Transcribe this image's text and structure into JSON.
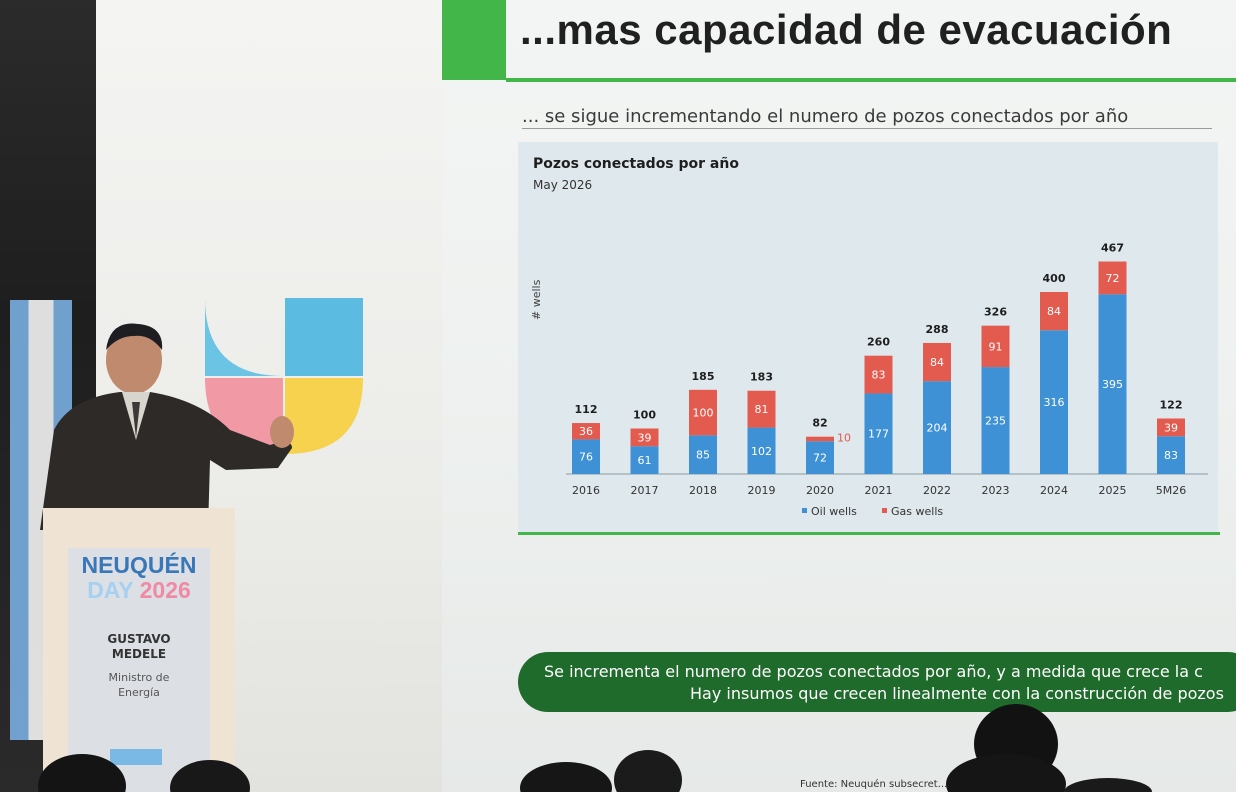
{
  "slide": {
    "headline": "...mas capacidad de evacuación",
    "subtitle": "... se sigue incrementando el numero de pozos conectados por año",
    "footer_line1": "Se incrementa el numero de pozos conectados por año, y a medida que crece la c",
    "footer_line2": "Hay insumos que crecen linealmente con la construcción de pozos",
    "source": "Fuente: Neuquén subsecret..."
  },
  "chart_data": {
    "type": "bar",
    "stacked": true,
    "title": "Pozos conectados por año",
    "subtitle": "May 2026",
    "ylabel": "# wells",
    "categories": [
      "2016",
      "2017",
      "2018",
      "2019",
      "2020",
      "2021",
      "2022",
      "2023",
      "2024",
      "2025",
      "5M26"
    ],
    "series": [
      {
        "name": "Oil wells",
        "color": "#3d91d4",
        "values": [
          76,
          61,
          85,
          102,
          72,
          177,
          204,
          235,
          316,
          395,
          83
        ]
      },
      {
        "name": "Gas wells",
        "color": "#e35b4f",
        "values": [
          36,
          39,
          100,
          81,
          10,
          83,
          84,
          91,
          84,
          72,
          39
        ]
      }
    ],
    "totals": [
      112,
      100,
      185,
      183,
      82,
      260,
      288,
      326,
      400,
      467,
      122
    ],
    "legend_position": "bottom",
    "ylim": [
      0,
      500
    ]
  },
  "podium": {
    "event_line1": "NEUQUÉN",
    "event_line2_word": "DAY",
    "event_line2_year": "2026",
    "name_line1": "GUSTAVO",
    "name_line2": "MEDELE",
    "role_line1": "Ministro de",
    "role_line2": "Energía"
  },
  "colors": {
    "accent_green": "#43b649",
    "dark_green": "#1f6b2b",
    "oil_blue": "#3d91d4",
    "gas_red": "#e35b4f"
  }
}
